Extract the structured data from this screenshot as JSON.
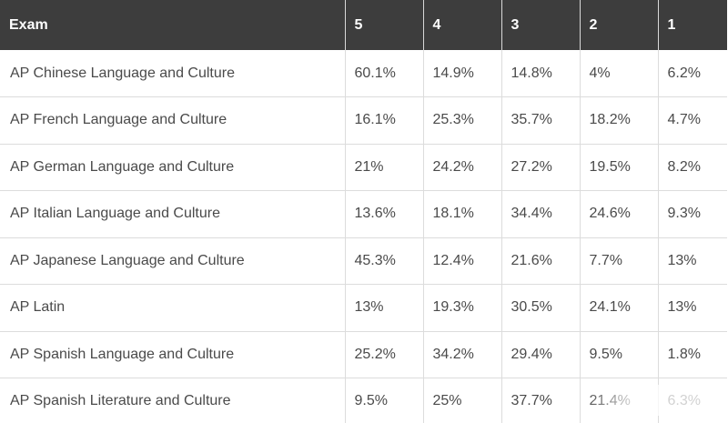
{
  "table": {
    "headers": [
      "Exam",
      "5",
      "4",
      "3",
      "2",
      "1"
    ],
    "rows": [
      [
        "AP Chinese Language and Culture",
        "60.1%",
        "14.9%",
        "14.8%",
        "4%",
        "6.2%"
      ],
      [
        "AP French Language and Culture",
        "16.1%",
        "25.3%",
        "35.7%",
        "18.2%",
        "4.7%"
      ],
      [
        "AP German Language and Culture",
        "21%",
        "24.2%",
        "27.2%",
        "19.5%",
        "8.2%"
      ],
      [
        "AP Italian Language and Culture",
        "13.6%",
        "18.1%",
        "34.4%",
        "24.6%",
        "9.3%"
      ],
      [
        "AP Japanese Language and Culture",
        "45.3%",
        "12.4%",
        "21.6%",
        "7.7%",
        "13%"
      ],
      [
        "AP Latin",
        "13%",
        "19.3%",
        "30.5%",
        "24.1%",
        "13%"
      ],
      [
        "AP Spanish Language and Culture",
        "25.2%",
        "34.2%",
        "29.4%",
        "9.5%",
        "1.8%"
      ],
      [
        "AP Spanish Literature and Culture",
        "9.5%",
        "25%",
        "37.7%",
        "21.4%",
        "6.3%"
      ]
    ]
  }
}
